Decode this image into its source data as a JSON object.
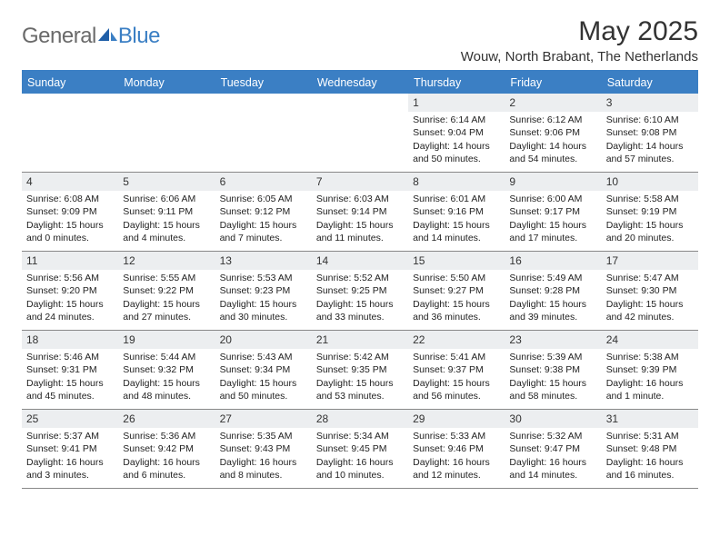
{
  "brand": {
    "general": "General",
    "blue": "Blue"
  },
  "colors": {
    "accent": "#3b7fc4",
    "day_header_bg": "#eceef0",
    "text": "#222222",
    "logo_gray": "#6a6a6a",
    "divider": "#888888"
  },
  "title": "May 2025",
  "location": "Wouw, North Brabant, The Netherlands",
  "weekdays": [
    "Sunday",
    "Monday",
    "Tuesday",
    "Wednesday",
    "Thursday",
    "Friday",
    "Saturday"
  ],
  "weeks": [
    [
      {
        "empty": true
      },
      {
        "empty": true
      },
      {
        "empty": true
      },
      {
        "empty": true
      },
      {
        "n": "1",
        "sr": "Sunrise: 6:14 AM",
        "ss": "Sunset: 9:04 PM",
        "d1": "Daylight: 14 hours",
        "d2": "and 50 minutes."
      },
      {
        "n": "2",
        "sr": "Sunrise: 6:12 AM",
        "ss": "Sunset: 9:06 PM",
        "d1": "Daylight: 14 hours",
        "d2": "and 54 minutes."
      },
      {
        "n": "3",
        "sr": "Sunrise: 6:10 AM",
        "ss": "Sunset: 9:08 PM",
        "d1": "Daylight: 14 hours",
        "d2": "and 57 minutes."
      }
    ],
    [
      {
        "n": "4",
        "sr": "Sunrise: 6:08 AM",
        "ss": "Sunset: 9:09 PM",
        "d1": "Daylight: 15 hours",
        "d2": "and 0 minutes."
      },
      {
        "n": "5",
        "sr": "Sunrise: 6:06 AM",
        "ss": "Sunset: 9:11 PM",
        "d1": "Daylight: 15 hours",
        "d2": "and 4 minutes."
      },
      {
        "n": "6",
        "sr": "Sunrise: 6:05 AM",
        "ss": "Sunset: 9:12 PM",
        "d1": "Daylight: 15 hours",
        "d2": "and 7 minutes."
      },
      {
        "n": "7",
        "sr": "Sunrise: 6:03 AM",
        "ss": "Sunset: 9:14 PM",
        "d1": "Daylight: 15 hours",
        "d2": "and 11 minutes."
      },
      {
        "n": "8",
        "sr": "Sunrise: 6:01 AM",
        "ss": "Sunset: 9:16 PM",
        "d1": "Daylight: 15 hours",
        "d2": "and 14 minutes."
      },
      {
        "n": "9",
        "sr": "Sunrise: 6:00 AM",
        "ss": "Sunset: 9:17 PM",
        "d1": "Daylight: 15 hours",
        "d2": "and 17 minutes."
      },
      {
        "n": "10",
        "sr": "Sunrise: 5:58 AM",
        "ss": "Sunset: 9:19 PM",
        "d1": "Daylight: 15 hours",
        "d2": "and 20 minutes."
      }
    ],
    [
      {
        "n": "11",
        "sr": "Sunrise: 5:56 AM",
        "ss": "Sunset: 9:20 PM",
        "d1": "Daylight: 15 hours",
        "d2": "and 24 minutes."
      },
      {
        "n": "12",
        "sr": "Sunrise: 5:55 AM",
        "ss": "Sunset: 9:22 PM",
        "d1": "Daylight: 15 hours",
        "d2": "and 27 minutes."
      },
      {
        "n": "13",
        "sr": "Sunrise: 5:53 AM",
        "ss": "Sunset: 9:23 PM",
        "d1": "Daylight: 15 hours",
        "d2": "and 30 minutes."
      },
      {
        "n": "14",
        "sr": "Sunrise: 5:52 AM",
        "ss": "Sunset: 9:25 PM",
        "d1": "Daylight: 15 hours",
        "d2": "and 33 minutes."
      },
      {
        "n": "15",
        "sr": "Sunrise: 5:50 AM",
        "ss": "Sunset: 9:27 PM",
        "d1": "Daylight: 15 hours",
        "d2": "and 36 minutes."
      },
      {
        "n": "16",
        "sr": "Sunrise: 5:49 AM",
        "ss": "Sunset: 9:28 PM",
        "d1": "Daylight: 15 hours",
        "d2": "and 39 minutes."
      },
      {
        "n": "17",
        "sr": "Sunrise: 5:47 AM",
        "ss": "Sunset: 9:30 PM",
        "d1": "Daylight: 15 hours",
        "d2": "and 42 minutes."
      }
    ],
    [
      {
        "n": "18",
        "sr": "Sunrise: 5:46 AM",
        "ss": "Sunset: 9:31 PM",
        "d1": "Daylight: 15 hours",
        "d2": "and 45 minutes."
      },
      {
        "n": "19",
        "sr": "Sunrise: 5:44 AM",
        "ss": "Sunset: 9:32 PM",
        "d1": "Daylight: 15 hours",
        "d2": "and 48 minutes."
      },
      {
        "n": "20",
        "sr": "Sunrise: 5:43 AM",
        "ss": "Sunset: 9:34 PM",
        "d1": "Daylight: 15 hours",
        "d2": "and 50 minutes."
      },
      {
        "n": "21",
        "sr": "Sunrise: 5:42 AM",
        "ss": "Sunset: 9:35 PM",
        "d1": "Daylight: 15 hours",
        "d2": "and 53 minutes."
      },
      {
        "n": "22",
        "sr": "Sunrise: 5:41 AM",
        "ss": "Sunset: 9:37 PM",
        "d1": "Daylight: 15 hours",
        "d2": "and 56 minutes."
      },
      {
        "n": "23",
        "sr": "Sunrise: 5:39 AM",
        "ss": "Sunset: 9:38 PM",
        "d1": "Daylight: 15 hours",
        "d2": "and 58 minutes."
      },
      {
        "n": "24",
        "sr": "Sunrise: 5:38 AM",
        "ss": "Sunset: 9:39 PM",
        "d1": "Daylight: 16 hours",
        "d2": "and 1 minute."
      }
    ],
    [
      {
        "n": "25",
        "sr": "Sunrise: 5:37 AM",
        "ss": "Sunset: 9:41 PM",
        "d1": "Daylight: 16 hours",
        "d2": "and 3 minutes."
      },
      {
        "n": "26",
        "sr": "Sunrise: 5:36 AM",
        "ss": "Sunset: 9:42 PM",
        "d1": "Daylight: 16 hours",
        "d2": "and 6 minutes."
      },
      {
        "n": "27",
        "sr": "Sunrise: 5:35 AM",
        "ss": "Sunset: 9:43 PM",
        "d1": "Daylight: 16 hours",
        "d2": "and 8 minutes."
      },
      {
        "n": "28",
        "sr": "Sunrise: 5:34 AM",
        "ss": "Sunset: 9:45 PM",
        "d1": "Daylight: 16 hours",
        "d2": "and 10 minutes."
      },
      {
        "n": "29",
        "sr": "Sunrise: 5:33 AM",
        "ss": "Sunset: 9:46 PM",
        "d1": "Daylight: 16 hours",
        "d2": "and 12 minutes."
      },
      {
        "n": "30",
        "sr": "Sunrise: 5:32 AM",
        "ss": "Sunset: 9:47 PM",
        "d1": "Daylight: 16 hours",
        "d2": "and 14 minutes."
      },
      {
        "n": "31",
        "sr": "Sunrise: 5:31 AM",
        "ss": "Sunset: 9:48 PM",
        "d1": "Daylight: 16 hours",
        "d2": "and 16 minutes."
      }
    ]
  ]
}
